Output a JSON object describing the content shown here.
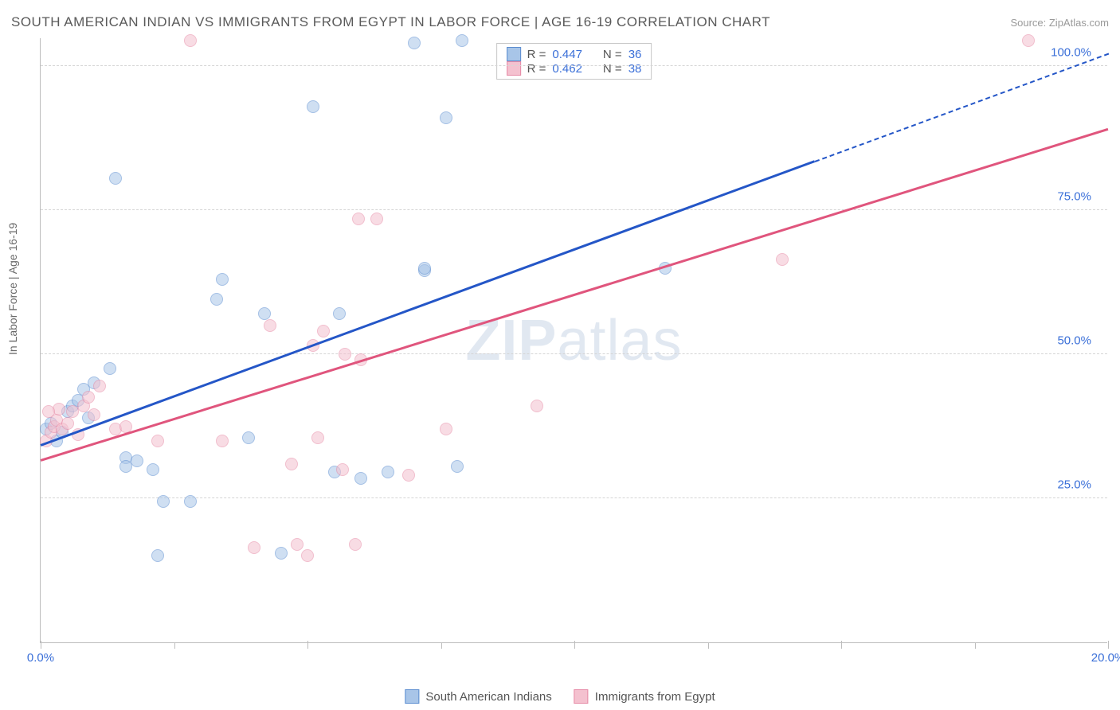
{
  "title": "SOUTH AMERICAN INDIAN VS IMMIGRANTS FROM EGYPT IN LABOR FORCE | AGE 16-19 CORRELATION CHART",
  "source": "Source: ZipAtlas.com",
  "watermark_a": "ZIP",
  "watermark_b": "atlas",
  "y_axis_label": "In Labor Force | Age 16-19",
  "chart": {
    "type": "scatter",
    "xlim": [
      0,
      20
    ],
    "ylim": [
      0,
      105
    ],
    "y_ticks": [
      25,
      50,
      75,
      100
    ],
    "y_tick_labels": [
      "25.0%",
      "50.0%",
      "75.0%",
      "100.0%"
    ],
    "x_ticks": [
      0,
      5,
      10,
      15,
      20
    ],
    "x_tick_labels": [
      "0.0%",
      "",
      "",
      "",
      "20.0%"
    ],
    "x_minor_ticks": [
      2.5,
      7.5,
      12.5,
      17.5
    ],
    "grid_color": "#d5d5d5",
    "axis_color": "#bdbdbd",
    "background_color": "#ffffff",
    "point_radius": 8,
    "point_opacity": 0.55,
    "series": [
      {
        "name": "South American Indians",
        "fill": "#a8c5e8",
        "stroke": "#5b8dd0",
        "line_color": "#2456c7",
        "R": "0.447",
        "N": "36",
        "trend": {
          "x1": 0,
          "y1": 34,
          "x2": 20,
          "y2": 102,
          "solid_until_x": 14.5
        },
        "points": [
          [
            0.1,
            37
          ],
          [
            0.2,
            38
          ],
          [
            0.3,
            35
          ],
          [
            0.4,
            36.5
          ],
          [
            0.5,
            40
          ],
          [
            0.6,
            41
          ],
          [
            0.7,
            42
          ],
          [
            0.8,
            44
          ],
          [
            0.9,
            39
          ],
          [
            1.0,
            45
          ],
          [
            1.3,
            47.5
          ],
          [
            1.4,
            80.5
          ],
          [
            1.6,
            32
          ],
          [
            1.6,
            30.5
          ],
          [
            1.8,
            31.5
          ],
          [
            2.1,
            30
          ],
          [
            2.2,
            15
          ],
          [
            2.3,
            24.5
          ],
          [
            3.3,
            59.5
          ],
          [
            3.4,
            63
          ],
          [
            3.9,
            35.5
          ],
          [
            4.2,
            57
          ],
          [
            4.5,
            15.5
          ],
          [
            5.1,
            93
          ],
          [
            5.5,
            29.5
          ],
          [
            5.6,
            57
          ],
          [
            6.0,
            28.5
          ],
          [
            7.0,
            104
          ],
          [
            7.2,
            64.5
          ],
          [
            7.2,
            65
          ],
          [
            7.6,
            91
          ],
          [
            7.8,
            30.5
          ],
          [
            7.9,
            104.5
          ],
          [
            11.7,
            65
          ],
          [
            6.5,
            29.5
          ],
          [
            2.8,
            24.5
          ]
        ]
      },
      {
        "name": "Immigrants from Egypt",
        "fill": "#f4c1cf",
        "stroke": "#e68aa6",
        "line_color": "#e0557d",
        "R": "0.462",
        "N": "38",
        "trend": {
          "x1": 0,
          "y1": 31.5,
          "x2": 20,
          "y2": 89,
          "solid_until_x": 20
        },
        "points": [
          [
            0.1,
            35
          ],
          [
            0.2,
            36.5
          ],
          [
            0.25,
            37.5
          ],
          [
            0.3,
            38.5
          ],
          [
            0.35,
            40.5
          ],
          [
            0.4,
            37
          ],
          [
            0.5,
            38
          ],
          [
            0.6,
            40
          ],
          [
            0.7,
            36
          ],
          [
            0.8,
            41
          ],
          [
            0.9,
            42.5
          ],
          [
            1.0,
            39.5
          ],
          [
            1.1,
            44.5
          ],
          [
            1.4,
            37
          ],
          [
            1.6,
            37.5
          ],
          [
            2.2,
            35
          ],
          [
            2.8,
            104.5
          ],
          [
            3.4,
            35
          ],
          [
            4.0,
            16.5
          ],
          [
            4.3,
            55
          ],
          [
            4.7,
            31
          ],
          [
            4.8,
            17
          ],
          [
            5.0,
            15
          ],
          [
            5.1,
            51.5
          ],
          [
            5.2,
            35.5
          ],
          [
            5.3,
            54
          ],
          [
            5.65,
            30
          ],
          [
            5.7,
            50
          ],
          [
            5.9,
            17
          ],
          [
            5.95,
            73.5
          ],
          [
            6.0,
            49
          ],
          [
            6.3,
            73.5
          ],
          [
            6.9,
            29
          ],
          [
            7.6,
            37
          ],
          [
            9.3,
            41
          ],
          [
            13.9,
            66.5
          ],
          [
            18.5,
            104.5
          ],
          [
            0.15,
            40
          ]
        ]
      }
    ]
  },
  "legend_top": {
    "rows": [
      {
        "series": 0,
        "r_label": "R =",
        "n_label": "N ="
      },
      {
        "series": 1,
        "r_label": "R =",
        "n_label": "N ="
      }
    ]
  },
  "legend_bottom": {
    "items": [
      {
        "series": 0
      },
      {
        "series": 1
      }
    ]
  },
  "colors": {
    "title": "#5a5a5a",
    "source": "#9a9a9a",
    "blue_text": "#3a6fd8",
    "pink_text": "#e0557d"
  }
}
